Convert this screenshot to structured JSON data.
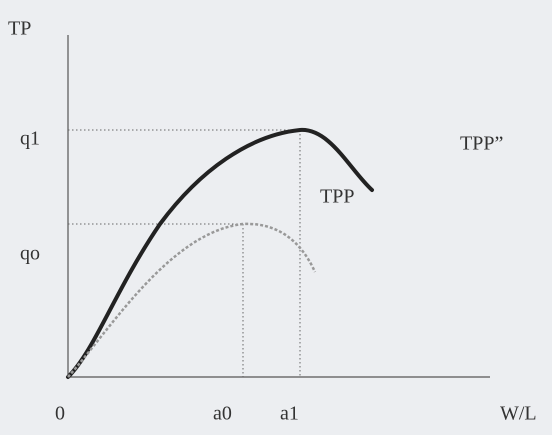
{
  "axes": {
    "y_label": "TP",
    "x_label": "W/L",
    "origin": "0"
  },
  "levels": [
    "q1",
    "qo"
  ],
  "inputs": [
    "a0",
    "a1"
  ],
  "curves": [
    "TPP",
    "TPP”"
  ]
}
